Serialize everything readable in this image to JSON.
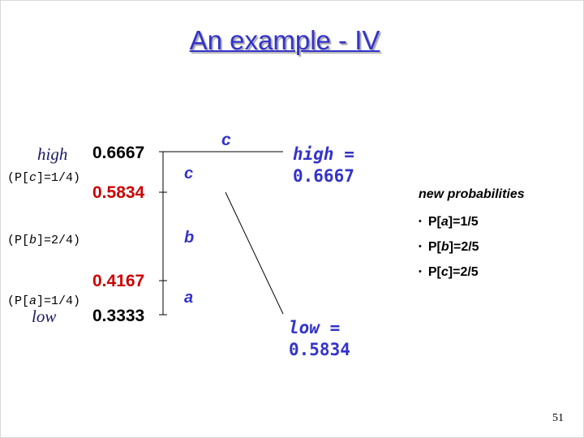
{
  "title": "An example - IV",
  "interval": {
    "high_label": "high",
    "low_label": "low",
    "prob_c": {
      "prefix": "(P[",
      "sym": "c",
      "suffix": "]=1/4)"
    },
    "prob_b": {
      "prefix": "(P[",
      "sym": "b",
      "suffix": "]=2/4)"
    },
    "prob_a": {
      "prefix": "(P[",
      "sym": "a",
      "suffix": "]=1/4)"
    },
    "values": [
      "0.6667",
      "0.5834",
      "0.4167",
      "0.3333"
    ],
    "highlight_color": "#cc0000"
  },
  "symbols": {
    "c_top": "c",
    "c": "c",
    "b": "b",
    "a": "a"
  },
  "result": {
    "high_text": "high =",
    "high_value": "0.6667",
    "low_text": "low =",
    "low_value": "0.5834"
  },
  "new_probabilities": {
    "title": "new probabilities",
    "items": [
      {
        "prefix": "P[",
        "sym": "a",
        "suffix": "]=1/5"
      },
      {
        "prefix": "P[",
        "sym": "b",
        "suffix": "]=2/5"
      },
      {
        "prefix": "P[",
        "sym": "c",
        "suffix": "]=2/5"
      }
    ]
  },
  "page_number": "51",
  "colors": {
    "accent": "#3333cc",
    "text": "#000000"
  }
}
